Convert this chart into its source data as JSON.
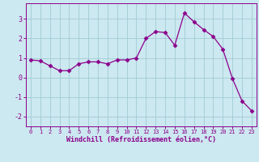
{
  "x": [
    0,
    1,
    2,
    3,
    4,
    5,
    6,
    7,
    8,
    9,
    10,
    11,
    12,
    13,
    14,
    15,
    16,
    17,
    18,
    19,
    20,
    21,
    22,
    23
  ],
  "y": [
    0.9,
    0.85,
    0.6,
    0.35,
    0.35,
    0.7,
    0.8,
    0.8,
    0.7,
    0.9,
    0.9,
    1.0,
    2.0,
    2.35,
    2.3,
    1.65,
    3.3,
    2.85,
    2.45,
    2.1,
    1.45,
    -0.05,
    -1.2,
    -1.7
  ],
  "line_color": "#8B008B",
  "marker": "D",
  "marker_size": 2.5,
  "bg_color": "#cce8f0",
  "grid_color": "#a0ccd4",
  "xlabel": "Windchill (Refroidissement éolien,°C)",
  "xlabel_color": "#8B008B",
  "tick_color": "#8B008B",
  "ylim": [
    -2.5,
    3.8
  ],
  "xlim": [
    -0.5,
    23.5
  ],
  "yticks": [
    -2,
    -1,
    0,
    1,
    2,
    3
  ],
  "xticks": [
    0,
    1,
    2,
    3,
    4,
    5,
    6,
    7,
    8,
    9,
    10,
    11,
    12,
    13,
    14,
    15,
    16,
    17,
    18,
    19,
    20,
    21,
    22,
    23
  ]
}
